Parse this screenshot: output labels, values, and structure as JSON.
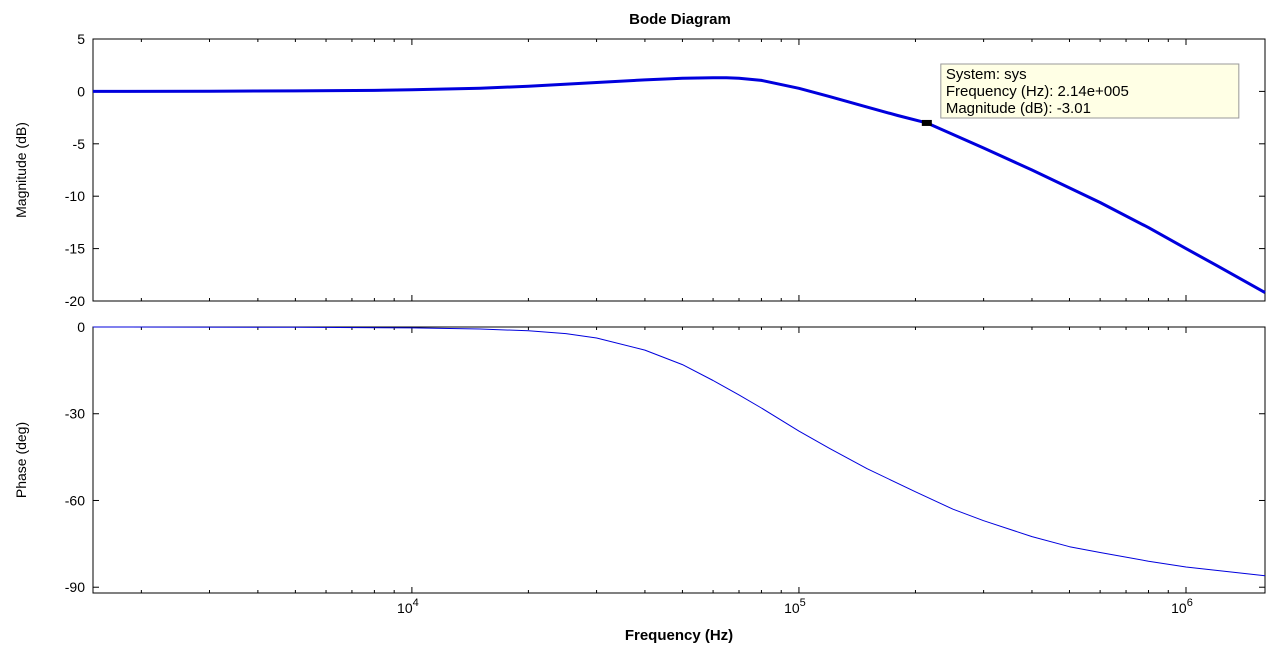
{
  "chart_data": {
    "type": "line",
    "title": "Bode Diagram",
    "xlabel": "Frequency (Hz)",
    "xscale": "log",
    "xlim": [
      1500,
      1600000
    ],
    "x_ticks": [
      {
        "value": 10000,
        "base": "10",
        "exp": "4"
      },
      {
        "value": 100000,
        "base": "10",
        "exp": "5"
      },
      {
        "value": 1000000,
        "base": "10",
        "exp": "6"
      }
    ],
    "colors": {
      "line": "#0000dd",
      "marker": "#000000",
      "datatip_bg": "#ffffe5",
      "datatip_border": "#999999"
    },
    "panels": [
      {
        "name": "magnitude",
        "ylabel": "Magnitude (dB)",
        "ylim": [
          -20,
          5
        ],
        "yticks": [
          5,
          0,
          -5,
          -10,
          -15,
          -20
        ],
        "series": [
          {
            "line": "thick",
            "x": [
              1500,
              3000,
              5000,
              8000,
              10000,
              15000,
              20000,
              30000,
              40000,
              50000,
              60000,
              65000,
              70000,
              80000,
              100000,
              120000,
              150000,
              180000,
              214000,
              300000,
              400000,
              600000,
              800000,
              1000000,
              1200000,
              1600000
            ],
            "y": [
              0,
              0.02,
              0.05,
              0.1,
              0.15,
              0.3,
              0.5,
              0.85,
              1.1,
              1.25,
              1.3,
              1.3,
              1.25,
              1.05,
              0.3,
              -0.5,
              -1.5,
              -2.3,
              -3.01,
              -5.4,
              -7.5,
              -10.6,
              -13.0,
              -15.0,
              -16.6,
              -19.2
            ]
          }
        ],
        "datatip": {
          "x": 214000,
          "y": -3.01,
          "lines": [
            "System: sys",
            "Frequency (Hz): 2.14e+005",
            "Magnitude (dB): -3.01"
          ]
        }
      },
      {
        "name": "phase",
        "ylabel": "Phase (deg)",
        "ylim": [
          -92,
          0
        ],
        "yticks": [
          0,
          -30,
          -60,
          -90
        ],
        "series": [
          {
            "line": "thin",
            "x": [
              1500,
              5000,
              10000,
              15000,
              20000,
              25000,
              30000,
              40000,
              50000,
              60000,
              70000,
              80000,
              100000,
              120000,
              150000,
              200000,
              250000,
              300000,
              400000,
              500000,
              600000,
              800000,
              1000000,
              1600000
            ],
            "y": [
              0,
              -0.1,
              -0.3,
              -0.7,
              -1.3,
              -2.3,
              -3.8,
              -8,
              -13,
              -18.5,
              -23.5,
              -28,
              -36,
              -42,
              -49,
              -57,
              -63,
              -67,
              -72.5,
              -76,
              -78,
              -81,
              -83,
              -86
            ]
          }
        ]
      }
    ]
  }
}
